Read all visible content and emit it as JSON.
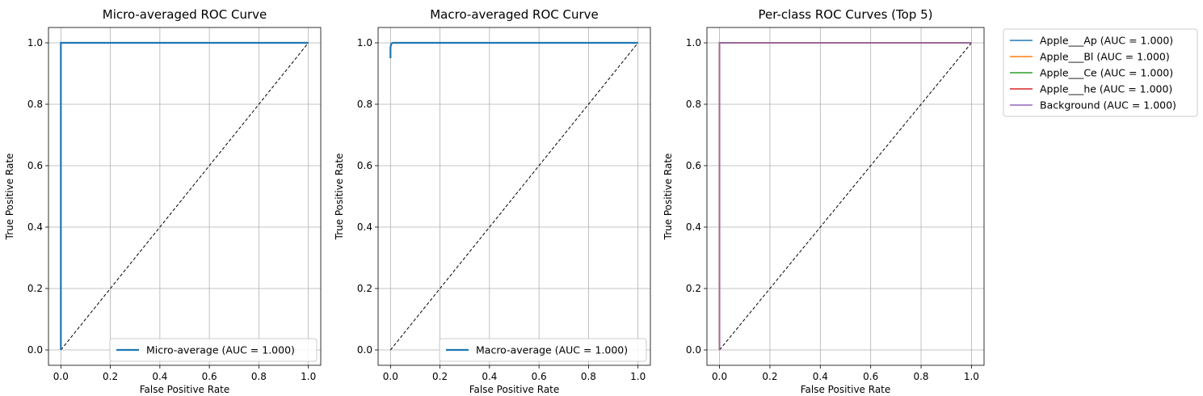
{
  "chart_data": [
    {
      "type": "line",
      "title": "Micro-averaged ROC Curve",
      "xlabel": "False Positive Rate",
      "ylabel": "True Positive Rate",
      "xlim": [
        -0.05,
        1.05
      ],
      "ylim": [
        -0.05,
        1.05
      ],
      "xticks": [
        "0.0",
        "0.2",
        "0.4",
        "0.6",
        "0.8",
        "1.0"
      ],
      "yticks": [
        "0.0",
        "0.2",
        "0.4",
        "0.6",
        "0.8",
        "1.0"
      ],
      "grid": true,
      "legend_position": "lower-right",
      "series": [
        {
          "name": "Micro-average (AUC = 1.000)",
          "color": "#1f77b4",
          "x": [
            0,
            0,
            0.005,
            1.0
          ],
          "y": [
            0,
            1.0,
            1.0,
            1.0
          ]
        }
      ],
      "chance_line": {
        "color": "#000000",
        "x": [
          0,
          1
        ],
        "y": [
          0,
          1
        ]
      }
    },
    {
      "type": "line",
      "title": "Macro-averaged ROC Curve",
      "xlabel": "False Positive Rate",
      "ylabel": "True Positive Rate",
      "xlim": [
        -0.05,
        1.05
      ],
      "ylim": [
        -0.05,
        1.05
      ],
      "xticks": [
        "0.0",
        "0.2",
        "0.4",
        "0.6",
        "0.8",
        "1.0"
      ],
      "yticks": [
        "0.0",
        "0.2",
        "0.4",
        "0.6",
        "0.8",
        "1.0"
      ],
      "grid": true,
      "legend_position": "lower-right",
      "series": [
        {
          "name": "Macro-average (AUC = 1.000)",
          "color": "#1f77b4",
          "x": [
            0,
            0,
            0.003,
            0.01,
            1.0
          ],
          "y": [
            0.95,
            0.985,
            0.997,
            1.0,
            1.0
          ]
        }
      ],
      "chance_line": {
        "color": "#000000",
        "x": [
          0,
          1
        ],
        "y": [
          0,
          1
        ]
      }
    },
    {
      "type": "line",
      "title": "Per-class ROC Curves (Top 5)",
      "xlabel": "False Positive Rate",
      "ylabel": "True Positive Rate",
      "xlim": [
        -0.05,
        1.05
      ],
      "ylim": [
        -0.05,
        1.05
      ],
      "xticks": [
        "0.0",
        "0.2",
        "0.4",
        "0.6",
        "0.8",
        "1.0"
      ],
      "yticks": [
        "0.0",
        "0.2",
        "0.4",
        "0.6",
        "0.8",
        "1.0"
      ],
      "grid": true,
      "legend_position": "outside-upper-right",
      "series": [
        {
          "name": "Apple___Ap (AUC = 1.000)",
          "color": "#1f77b4",
          "x": [
            0,
            0,
            1.0
          ],
          "y": [
            0,
            1.0,
            1.0
          ]
        },
        {
          "name": "Apple___Bl (AUC = 1.000)",
          "color": "#ff7f0e",
          "x": [
            0,
            0,
            1.0
          ],
          "y": [
            0,
            1.0,
            1.0
          ]
        },
        {
          "name": "Apple___Ce (AUC = 1.000)",
          "color": "#2ca02c",
          "x": [
            0,
            0,
            1.0
          ],
          "y": [
            0,
            1.0,
            1.0
          ]
        },
        {
          "name": "Apple___he (AUC = 1.000)",
          "color": "#d62728",
          "x": [
            0,
            0,
            1.0
          ],
          "y": [
            0,
            1.0,
            1.0
          ]
        },
        {
          "name": "Background (AUC = 1.000)",
          "color": "#9467bd",
          "x": [
            0,
            0,
            1.0
          ],
          "y": [
            0,
            1.0,
            1.0
          ]
        }
      ],
      "chance_line": {
        "color": "#000000",
        "x": [
          0,
          1
        ],
        "y": [
          0,
          1
        ]
      }
    }
  ]
}
